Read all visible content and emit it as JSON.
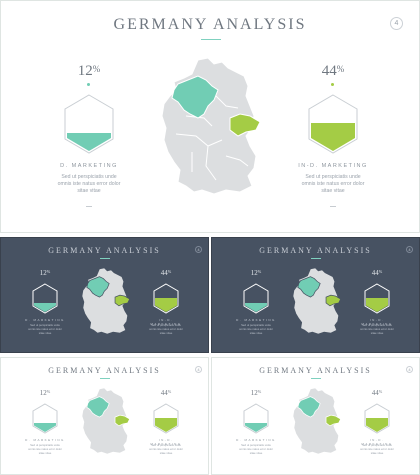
{
  "title": "GERMANY ANALYSIS",
  "page_number": "4",
  "left": {
    "value": "12",
    "unit": "%",
    "label": "D. MARKETING",
    "level": 0.28
  },
  "right": {
    "value": "44",
    "unit": "%",
    "label": "IN-D. MARKETING",
    "level": 0.42
  },
  "body_line_1": "Sed ut perspiciatis unde",
  "body_line_2": "omnis iste natus error dolor",
  "body_line_3": "sitae vitae",
  "colors": {
    "teal": "#71cdb4",
    "green": "#a4cc45",
    "map": "#dcdee0",
    "dark_bg": "#475262",
    "text": "#6f7780"
  }
}
